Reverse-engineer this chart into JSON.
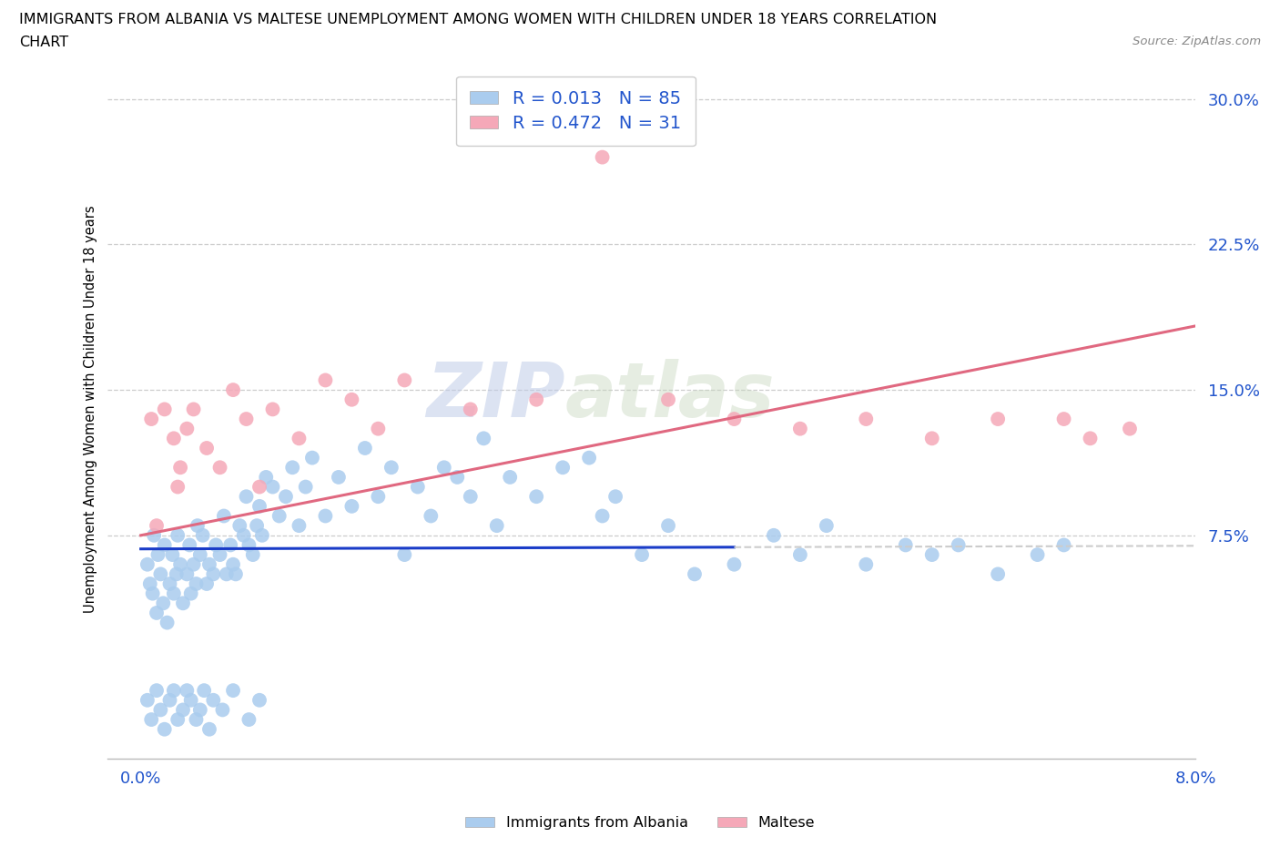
{
  "title_line1": "IMMIGRANTS FROM ALBANIA VS MALTESE UNEMPLOYMENT AMONG WOMEN WITH CHILDREN UNDER 18 YEARS CORRELATION",
  "title_line2": "CHART",
  "source": "Source: ZipAtlas.com",
  "ylabel": "Unemployment Among Women with Children Under 18 years",
  "x_min": 0.0,
  "x_max": 8.0,
  "y_min": -4.0,
  "y_max": 32.0,
  "y_ticks": [
    7.5,
    15.0,
    22.5,
    30.0
  ],
  "y_tick_labels": [
    "7.5%",
    "15.0%",
    "22.5%",
    "30.0%"
  ],
  "albania_color": "#aaccee",
  "maltese_color": "#f5a8b8",
  "albania_line_color": "#1a3cc8",
  "maltese_line_color": "#e06880",
  "albania_R": 0.013,
  "albania_N": 85,
  "maltese_R": 0.472,
  "maltese_N": 31,
  "background_color": "#ffffff",
  "grid_color": "#cccccc",
  "albania_x": [
    0.05,
    0.07,
    0.09,
    0.1,
    0.12,
    0.13,
    0.15,
    0.17,
    0.18,
    0.2,
    0.22,
    0.24,
    0.25,
    0.27,
    0.28,
    0.3,
    0.32,
    0.35,
    0.37,
    0.38,
    0.4,
    0.42,
    0.43,
    0.45,
    0.47,
    0.5,
    0.52,
    0.55,
    0.57,
    0.6,
    0.63,
    0.65,
    0.68,
    0.7,
    0.72,
    0.75,
    0.78,
    0.8,
    0.82,
    0.85,
    0.88,
    0.9,
    0.92,
    0.95,
    1.0,
    1.05,
    1.1,
    1.15,
    1.2,
    1.25,
    1.3,
    1.4,
    1.5,
    1.6,
    1.7,
    1.8,
    1.9,
    2.0,
    2.1,
    2.2,
    2.3,
    2.4,
    2.5,
    2.6,
    2.7,
    2.8,
    3.0,
    3.2,
    3.4,
    3.5,
    3.6,
    3.8,
    4.0,
    4.2,
    4.5,
    4.8,
    5.0,
    5.2,
    5.5,
    5.8,
    6.0,
    6.2,
    6.5,
    6.8,
    7.0
  ],
  "albania_y": [
    6.0,
    5.0,
    4.5,
    7.5,
    3.5,
    6.5,
    5.5,
    4.0,
    7.0,
    3.0,
    5.0,
    6.5,
    4.5,
    5.5,
    7.5,
    6.0,
    4.0,
    5.5,
    7.0,
    4.5,
    6.0,
    5.0,
    8.0,
    6.5,
    7.5,
    5.0,
    6.0,
    5.5,
    7.0,
    6.5,
    8.5,
    5.5,
    7.0,
    6.0,
    5.5,
    8.0,
    7.5,
    9.5,
    7.0,
    6.5,
    8.0,
    9.0,
    7.5,
    10.5,
    10.0,
    8.5,
    9.5,
    11.0,
    8.0,
    10.0,
    11.5,
    8.5,
    10.5,
    9.0,
    12.0,
    9.5,
    11.0,
    6.5,
    10.0,
    8.5,
    11.0,
    10.5,
    9.5,
    12.5,
    8.0,
    10.5,
    9.5,
    11.0,
    11.5,
    8.5,
    9.5,
    6.5,
    8.0,
    5.5,
    6.0,
    7.5,
    6.5,
    8.0,
    6.0,
    7.0,
    6.5,
    7.0,
    5.5,
    6.5,
    7.0
  ],
  "albania_y_below": [
    -1.0,
    -2.0,
    -0.5,
    -1.5,
    -2.5,
    -1.0,
    -0.5,
    -2.0,
    -1.5,
    -0.5,
    -1.0,
    -2.0,
    -1.5,
    -0.5,
    -2.5,
    -1.0,
    -1.5,
    -0.5,
    -2.0,
    -1.0
  ],
  "albania_x_below": [
    0.05,
    0.08,
    0.12,
    0.15,
    0.18,
    0.22,
    0.25,
    0.28,
    0.32,
    0.35,
    0.38,
    0.42,
    0.45,
    0.48,
    0.52,
    0.55,
    0.62,
    0.7,
    0.82,
    0.9
  ],
  "maltese_x": [
    0.08,
    0.12,
    0.18,
    0.25,
    0.3,
    0.35,
    0.4,
    0.5,
    0.6,
    0.7,
    0.8,
    0.9,
    1.0,
    1.2,
    1.4,
    1.6,
    1.8,
    2.0,
    2.5,
    3.0,
    3.5,
    4.0,
    4.5,
    5.0,
    5.5,
    6.0,
    6.5,
    7.0,
    7.2,
    7.5,
    0.28
  ],
  "maltese_y": [
    13.5,
    8.0,
    14.0,
    12.5,
    11.0,
    13.0,
    14.0,
    12.0,
    11.0,
    15.0,
    13.5,
    10.0,
    14.0,
    12.5,
    15.5,
    14.5,
    13.0,
    15.5,
    14.0,
    14.5,
    27.0,
    14.5,
    13.5,
    13.0,
    13.5,
    12.5,
    13.5,
    13.5,
    12.5,
    13.0,
    10.0
  ],
  "albania_trend_intercept": 6.8,
  "albania_trend_slope": 0.02,
  "maltese_trend_intercept": 7.5,
  "maltese_trend_slope": 1.35
}
